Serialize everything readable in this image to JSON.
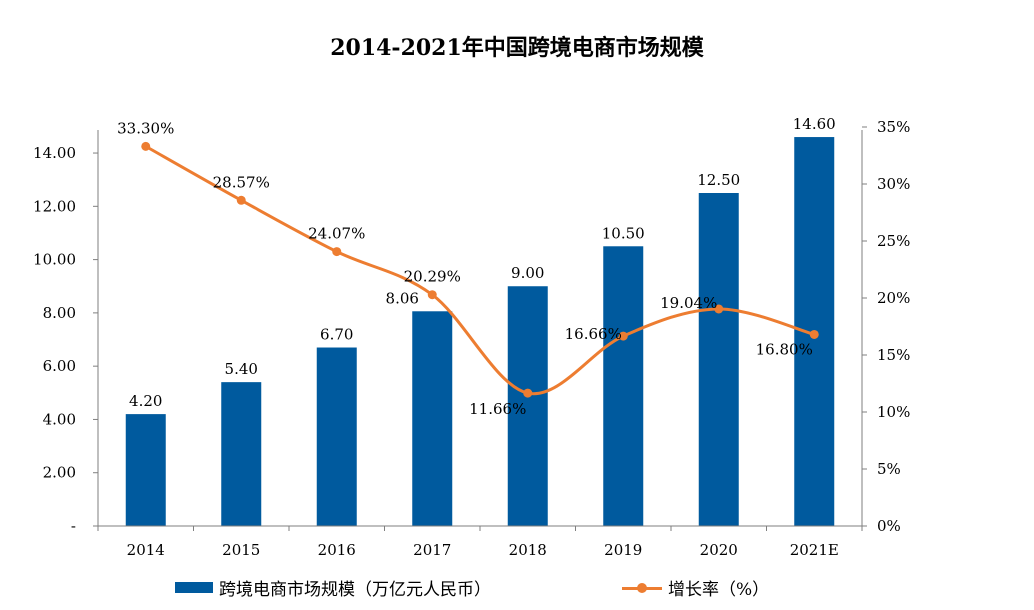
{
  "chart_data": {
    "type": "bar",
    "title": "2014-2021年中国跨境电商市场规模",
    "categories": [
      "2014",
      "2015",
      "2016",
      "2017",
      "2018",
      "2019",
      "2020",
      "2021E"
    ],
    "series": [
      {
        "name": "跨境电商市场规模（万亿元人民币）",
        "type": "bar",
        "axis": "left",
        "color": "#005a9e",
        "values": [
          4.2,
          5.4,
          6.7,
          8.06,
          9.0,
          10.5,
          12.5,
          14.6
        ],
        "labels": [
          "4.20",
          "5.40",
          "6.70",
          "8.06",
          "9.00",
          "10.50",
          "12.50",
          "14.60"
        ]
      },
      {
        "name": "增长率（%）",
        "type": "line",
        "axis": "right",
        "color": "#ed7d31",
        "values": [
          33.3,
          28.57,
          24.07,
          20.29,
          11.66,
          16.66,
          19.04,
          16.8
        ],
        "labels": [
          "33.30%",
          "28.57%",
          "24.07%",
          "20.29%",
          "11.66%",
          "16.66%",
          "19.04%",
          "16.80%"
        ]
      }
    ],
    "y_left": {
      "ylim": [
        0,
        14
      ],
      "ticks": [
        0,
        2,
        4,
        6,
        8,
        10,
        12,
        14
      ],
      "tick_labels": [
        "-",
        "2.00",
        "4.00",
        "6.00",
        "8.00",
        "10.00",
        "12.00",
        "14.00"
      ]
    },
    "y_right": {
      "ylim": [
        0,
        35
      ],
      "ticks": [
        0,
        5,
        10,
        15,
        20,
        25,
        30,
        35
      ],
      "tick_labels": [
        "0%",
        "5%",
        "10%",
        "15%",
        "20%",
        "25%",
        "30%",
        "35%"
      ]
    },
    "grid": false,
    "legend": "bottom"
  }
}
